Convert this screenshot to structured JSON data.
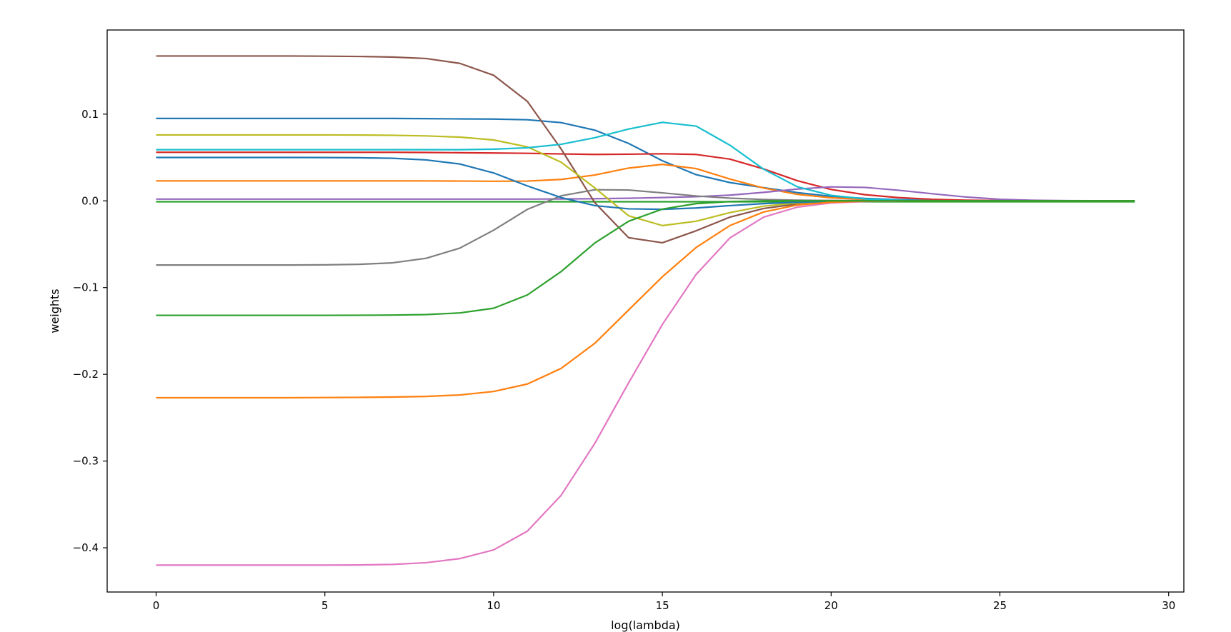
{
  "chart_data": {
    "type": "line",
    "title": "",
    "xlabel": "log(lambda)",
    "ylabel": "weights",
    "xlim": [
      -1.45,
      30.45
    ],
    "ylim": [
      -0.451,
      0.197
    ],
    "x": [
      0,
      1,
      2,
      3,
      4,
      5,
      6,
      7,
      8,
      9,
      10,
      11,
      12,
      13,
      14,
      15,
      16,
      17,
      18,
      19,
      20,
      21,
      22,
      23,
      24,
      25,
      26,
      27,
      28,
      29
    ],
    "xticks": [
      0,
      5,
      10,
      15,
      20,
      25,
      30
    ],
    "xtick_labels": [
      "0",
      "5",
      "10",
      "15",
      "20",
      "25",
      "30"
    ],
    "yticks": [
      0.1,
      0.0,
      -0.1,
      -0.2,
      -0.3,
      -0.4
    ],
    "ytick_labels": [
      "0.1",
      "0.0",
      "−0.1",
      "−0.2",
      "−0.3",
      "−0.4"
    ],
    "grid": false,
    "legend": "none",
    "series": [
      {
        "color": "#1f77b4",
        "values": [
          0.095,
          0.095,
          0.095,
          0.095,
          0.095,
          0.095,
          0.095,
          0.095,
          0.0948,
          0.0945,
          0.0943,
          0.0935,
          0.0902,
          0.0815,
          0.0662,
          0.0462,
          0.0302,
          0.0211,
          0.0152,
          0.0095,
          0.0052,
          0.0028,
          0.0014,
          0.0007,
          0.0003,
          0.0001,
          0.0,
          0.0,
          0.0,
          0.0
        ]
      },
      {
        "color": "#ff7f0e",
        "values": [
          0.023,
          0.023,
          0.023,
          0.023,
          0.023,
          0.023,
          0.023,
          0.023,
          0.023,
          0.0228,
          0.0226,
          0.0228,
          0.0247,
          0.0298,
          0.0378,
          0.0421,
          0.0372,
          0.0252,
          0.0148,
          0.0075,
          0.0035,
          0.0015,
          0.0006,
          0.0002,
          0.0001,
          0.0,
          0.0,
          0.0,
          0.0,
          0.0
        ]
      },
      {
        "color": "#2ca02c",
        "values": [
          -0.001,
          -0.001,
          -0.001,
          -0.001,
          -0.001,
          -0.001,
          -0.001,
          -0.001,
          -0.001,
          -0.001,
          -0.001,
          -0.001,
          -0.001,
          -0.001,
          -0.001,
          -0.001,
          -0.001,
          -0.001,
          -0.001,
          -0.001,
          -0.001,
          -0.001,
          -0.001,
          -0.001,
          -0.001,
          -0.001,
          -0.001,
          -0.001,
          -0.001,
          -0.001
        ]
      },
      {
        "color": "#d62728",
        "values": [
          0.056,
          0.056,
          0.056,
          0.056,
          0.056,
          0.056,
          0.056,
          0.056,
          0.0558,
          0.0555,
          0.0552,
          0.0548,
          0.0541,
          0.0535,
          0.0538,
          0.0543,
          0.0535,
          0.0481,
          0.0368,
          0.0232,
          0.0131,
          0.0071,
          0.0037,
          0.0018,
          0.0008,
          0.0003,
          0.0001,
          0.0,
          0.0,
          0.0
        ]
      },
      {
        "color": "#9467bd",
        "values": [
          0.002,
          0.002,
          0.002,
          0.002,
          0.002,
          0.002,
          0.002,
          0.002,
          0.002,
          0.002,
          0.002,
          0.002,
          0.0022,
          0.0025,
          0.003,
          0.0038,
          0.0048,
          0.0066,
          0.0098,
          0.0136,
          0.0161,
          0.0155,
          0.0122,
          0.0082,
          0.0044,
          0.0018,
          0.0006,
          0.0002,
          0.0001,
          0.0
        ]
      },
      {
        "color": "#8c564b",
        "values": [
          0.167,
          0.167,
          0.167,
          0.167,
          0.167,
          0.1668,
          0.1665,
          0.1658,
          0.1641,
          0.1585,
          0.1448,
          0.1147,
          0.0598,
          -0.0022,
          -0.0425,
          -0.0483,
          -0.0345,
          -0.0188,
          -0.0088,
          -0.0036,
          -0.0013,
          -0.0004,
          -0.0001,
          0.0,
          0.0,
          0.0,
          0.0,
          0.0,
          0.0,
          0.0
        ]
      },
      {
        "color": "#e377c2",
        "values": [
          -0.42,
          -0.42,
          -0.42,
          -0.42,
          -0.42,
          -0.42,
          -0.4198,
          -0.4192,
          -0.4172,
          -0.4125,
          -0.4025,
          -0.3808,
          -0.3395,
          -0.2795,
          -0.2098,
          -0.1425,
          -0.0848,
          -0.0428,
          -0.0188,
          -0.0072,
          -0.0024,
          -0.0007,
          -0.0002,
          0.0,
          0.0,
          0.0,
          0.0,
          0.0,
          0.0,
          0.0
        ]
      },
      {
        "color": "#7f7f7f",
        "values": [
          -0.074,
          -0.074,
          -0.074,
          -0.074,
          -0.074,
          -0.0738,
          -0.0732,
          -0.0715,
          -0.0662,
          -0.0545,
          -0.0338,
          -0.0098,
          0.0058,
          0.0128,
          0.0125,
          0.0092,
          0.0056,
          0.0031,
          0.0016,
          0.0008,
          0.0004,
          0.0002,
          0.0001,
          0.0,
          0.0,
          0.0,
          0.0,
          0.0,
          0.0,
          0.0
        ]
      },
      {
        "color": "#bcbd22",
        "values": [
          0.076,
          0.076,
          0.076,
          0.076,
          0.076,
          0.076,
          0.0759,
          0.0756,
          0.0749,
          0.0735,
          0.0702,
          0.0622,
          0.0446,
          0.0148,
          -0.0172,
          -0.0285,
          -0.0235,
          -0.0135,
          -0.0061,
          -0.0024,
          -0.0008,
          -0.0002,
          0.0,
          0.0,
          0.0,
          0.0,
          0.0,
          0.0,
          0.0,
          0.0
        ]
      },
      {
        "color": "#17becf",
        "values": [
          0.059,
          0.059,
          0.059,
          0.059,
          0.059,
          0.059,
          0.059,
          0.059,
          0.059,
          0.059,
          0.0596,
          0.0612,
          0.0652,
          0.0728,
          0.0828,
          0.0905,
          0.0862,
          0.0642,
          0.0365,
          0.0162,
          0.0063,
          0.0022,
          0.0007,
          0.0002,
          0.0,
          0.0,
          0.0,
          0.0,
          0.0,
          0.0
        ]
      },
      {
        "color": "#1f77b4",
        "values": [
          0.05,
          0.05,
          0.05,
          0.05,
          0.05,
          0.0499,
          0.0497,
          0.0491,
          0.0472,
          0.0425,
          0.0322,
          0.0172,
          0.0038,
          -0.0055,
          -0.0092,
          -0.0098,
          -0.0082,
          -0.0055,
          -0.0032,
          -0.0016,
          -0.0007,
          -0.0003,
          -0.0001,
          0.0,
          0.0,
          0.0,
          0.0,
          0.0,
          0.0,
          0.0
        ]
      },
      {
        "color": "#ff7f0e",
        "values": [
          -0.227,
          -0.227,
          -0.227,
          -0.227,
          -0.227,
          -0.2268,
          -0.2266,
          -0.2262,
          -0.2255,
          -0.2238,
          -0.2198,
          -0.2112,
          -0.1932,
          -0.1642,
          -0.1258,
          -0.0875,
          -0.0538,
          -0.0285,
          -0.0128,
          -0.0048,
          -0.0016,
          -0.0004,
          -0.0001,
          0.0,
          0.0,
          0.0,
          0.0,
          0.0,
          0.0,
          0.0
        ]
      },
      {
        "color": "#2ca02c",
        "values": [
          -0.132,
          -0.132,
          -0.132,
          -0.132,
          -0.132,
          -0.132,
          -0.1319,
          -0.1317,
          -0.1311,
          -0.1292,
          -0.1238,
          -0.1085,
          -0.0815,
          -0.0485,
          -0.0235,
          -0.0095,
          -0.0032,
          -0.0008,
          -0.0001,
          0.0,
          0.0,
          0.0,
          0.0,
          0.0,
          0.0,
          0.0,
          0.0,
          0.0,
          0.0,
          0.0
        ]
      }
    ]
  }
}
